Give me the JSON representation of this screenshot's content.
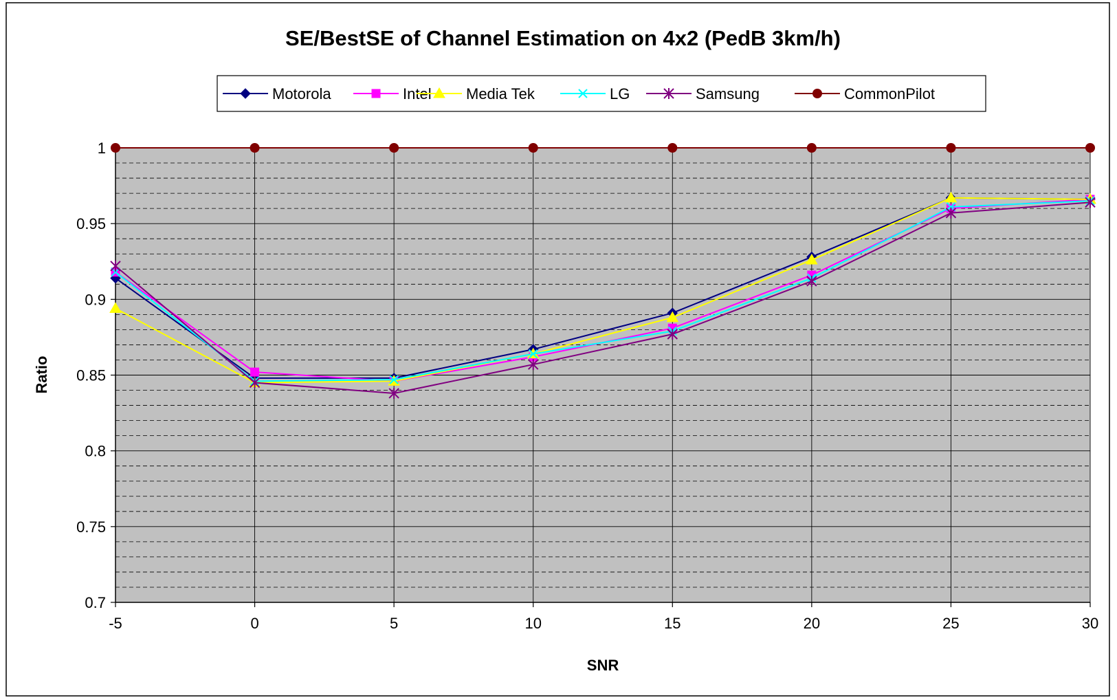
{
  "chart_data": {
    "type": "line",
    "title": "SE/BestSE of Channel Estimation on 4x2 (PedB 3km/h)",
    "xlabel": "SNR",
    "ylabel": "Ratio",
    "x": [
      "-5",
      "0",
      "5",
      "10",
      "15",
      "20",
      "25",
      "30"
    ],
    "y_ticks": [
      "0.7",
      "0.75",
      "0.8",
      "0.85",
      "0.9",
      "0.95",
      "1"
    ],
    "ylim": [
      0.7,
      1.0
    ],
    "y_major_step": 0.05,
    "y_minor_step": 0.01,
    "grid": true,
    "legend_position": "top",
    "plot_background": "#c0c0c0",
    "series": [
      {
        "name": "Motorola",
        "color": "#000080",
        "marker": "diamond",
        "values": [
          0.914,
          0.848,
          0.848,
          0.867,
          0.891,
          0.928,
          0.967,
          0.966
        ]
      },
      {
        "name": "Intel",
        "color": "#ff00ff",
        "marker": "square",
        "values": [
          0.918,
          0.852,
          0.846,
          0.862,
          0.881,
          0.916,
          0.96,
          0.966
        ]
      },
      {
        "name": "Media Tek",
        "color": "#ffff00",
        "marker": "triangle",
        "values": [
          0.894,
          0.845,
          0.846,
          0.864,
          0.888,
          0.926,
          0.967,
          0.966
        ]
      },
      {
        "name": "LG",
        "color": "#00ffff",
        "marker": "x",
        "values": [
          0.918,
          0.846,
          0.847,
          0.864,
          0.879,
          0.914,
          0.961,
          0.965
        ]
      },
      {
        "name": "Samsung",
        "color": "#800080",
        "marker": "star",
        "values": [
          0.922,
          0.845,
          0.838,
          0.857,
          0.877,
          0.912,
          0.957,
          0.964
        ]
      },
      {
        "name": "CommonPilot",
        "color": "#800000",
        "marker": "circle",
        "values": [
          1.0,
          1.0,
          1.0,
          1.0,
          1.0,
          1.0,
          1.0,
          1.0
        ]
      }
    ]
  }
}
